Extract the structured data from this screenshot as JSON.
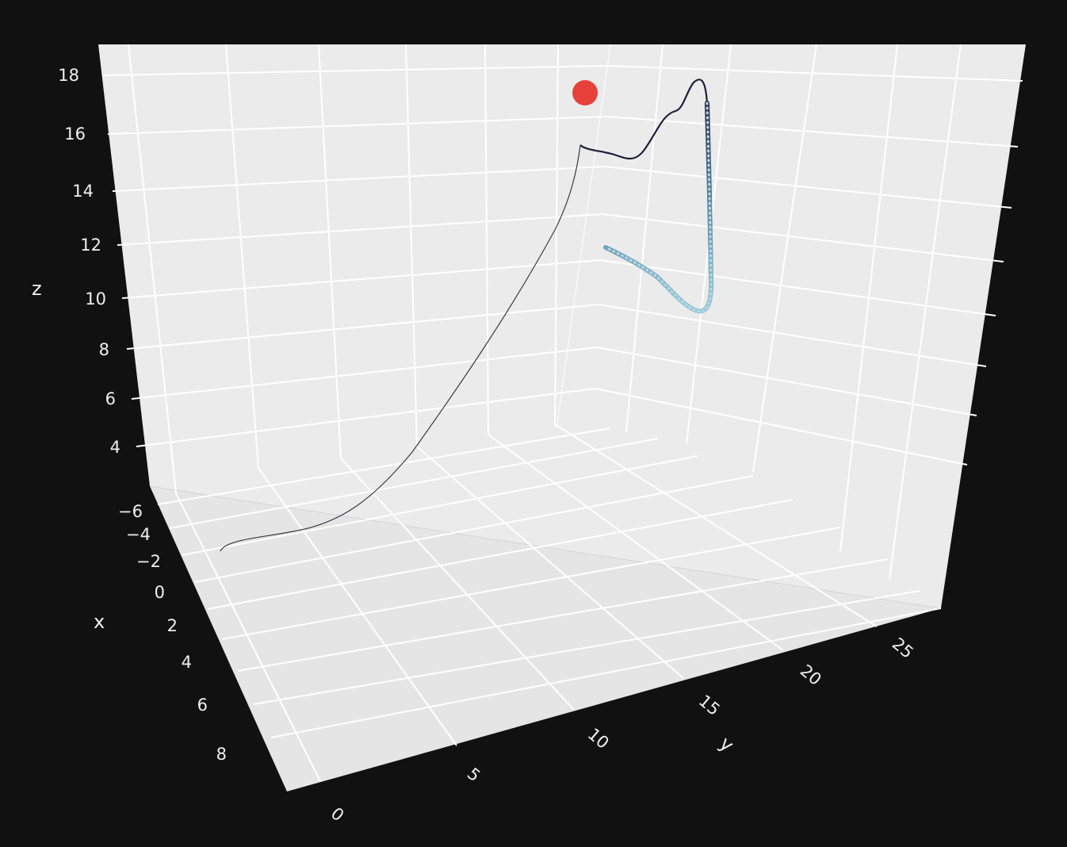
{
  "chart_data": {
    "type": "scatter3d",
    "axes": {
      "x": {
        "title": "x",
        "ticks": [
          "−6",
          "−4",
          "−2",
          "0",
          "2",
          "4",
          "6",
          "8"
        ]
      },
      "y": {
        "title": "y",
        "ticks": [
          "0",
          "5",
          "10",
          "15",
          "20",
          "25"
        ]
      },
      "z": {
        "title": "z",
        "ticks": [
          "4",
          "6",
          "8",
          "10",
          "12",
          "14",
          "16",
          "18"
        ]
      }
    },
    "grid": true,
    "colors": {
      "background": "#111111",
      "pane": "#ebebeb",
      "grid": "#ffffff",
      "marker": "#e8403a",
      "trace_start": "#1f1f3a",
      "trace_end": "#8fc4d4"
    },
    "trajectory": {
      "color_scale": "dark-navy to light-blue"
    },
    "marker": {
      "color": "#e8403a"
    }
  }
}
